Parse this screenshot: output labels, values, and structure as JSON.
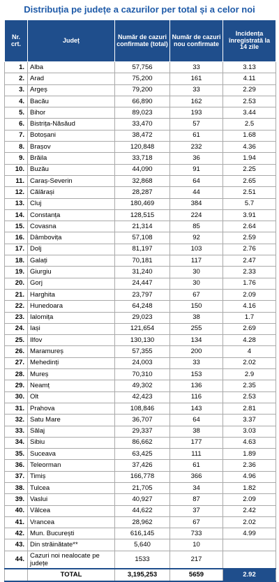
{
  "title": "Distribuția pe județe a cazurilor per total și a celor noi",
  "headers": {
    "nr": "Nr. crt.",
    "judet": "Județ",
    "total": "Număr de cazuri confirmate (total)",
    "noi": "Număr de cazuri nou confirmate",
    "incidenta": "Incidența înregistrată la 14 zile"
  },
  "rows": [
    {
      "nr": "1.",
      "judet": "Alba",
      "total": "57,756",
      "noi": "33",
      "inc": "3.13"
    },
    {
      "nr": "2.",
      "judet": "Arad",
      "total": "75,200",
      "noi": "161",
      "inc": "4.11"
    },
    {
      "nr": "3.",
      "judet": "Argeș",
      "total": "79,200",
      "noi": "33",
      "inc": "2.29"
    },
    {
      "nr": "4.",
      "judet": "Bacău",
      "total": "66,890",
      "noi": "162",
      "inc": "2.53"
    },
    {
      "nr": "5.",
      "judet": "Bihor",
      "total": "89,023",
      "noi": "193",
      "inc": "3.44"
    },
    {
      "nr": "6.",
      "judet": "Bistrița-Năsăud",
      "total": "33,470",
      "noi": "57",
      "inc": "2.5"
    },
    {
      "nr": "7.",
      "judet": "Botoșani",
      "total": "38,472",
      "noi": "61",
      "inc": "1.68"
    },
    {
      "nr": "8.",
      "judet": "Brașov",
      "total": "120,848",
      "noi": "232",
      "inc": "4.36"
    },
    {
      "nr": "9.",
      "judet": "Brăila",
      "total": "33,718",
      "noi": "36",
      "inc": "1.94"
    },
    {
      "nr": "10.",
      "judet": "Buzău",
      "total": "44,090",
      "noi": "91",
      "inc": "2.25"
    },
    {
      "nr": "11.",
      "judet": "Caraș-Severin",
      "total": "32,868",
      "noi": "64",
      "inc": "2.65"
    },
    {
      "nr": "12.",
      "judet": "Călărași",
      "total": "28,287",
      "noi": "44",
      "inc": "2.51"
    },
    {
      "nr": "13.",
      "judet": "Cluj",
      "total": "180,469",
      "noi": "384",
      "inc": "5.7"
    },
    {
      "nr": "14.",
      "judet": "Constanța",
      "total": "128,515",
      "noi": "224",
      "inc": "3.91"
    },
    {
      "nr": "15.",
      "judet": "Covasna",
      "total": "21,314",
      "noi": "85",
      "inc": "2.64"
    },
    {
      "nr": "16.",
      "judet": "Dâmbovița",
      "total": "57,108",
      "noi": "92",
      "inc": "2.59"
    },
    {
      "nr": "17.",
      "judet": "Dolj",
      "total": "81,197",
      "noi": "103",
      "inc": "2.76"
    },
    {
      "nr": "18.",
      "judet": "Galați",
      "total": "70,181",
      "noi": "117",
      "inc": "2.47"
    },
    {
      "nr": "19.",
      "judet": "Giurgiu",
      "total": "31,240",
      "noi": "30",
      "inc": "2.33"
    },
    {
      "nr": "20.",
      "judet": "Gorj",
      "total": "24,447",
      "noi": "30",
      "inc": "1.76"
    },
    {
      "nr": "21.",
      "judet": "Harghita",
      "total": "23,797",
      "noi": "67",
      "inc": "2.09"
    },
    {
      "nr": "22.",
      "judet": "Hunedoara",
      "total": "64,248",
      "noi": "150",
      "inc": "4.16"
    },
    {
      "nr": "23.",
      "judet": "Ialomița",
      "total": "29,023",
      "noi": "38",
      "inc": "1.7"
    },
    {
      "nr": "24.",
      "judet": "Iași",
      "total": "121,654",
      "noi": "255",
      "inc": "2.69"
    },
    {
      "nr": "25.",
      "judet": "Ilfov",
      "total": "130,130",
      "noi": "134",
      "inc": "4.28"
    },
    {
      "nr": "26.",
      "judet": "Maramureș",
      "total": "57,355",
      "noi": "200",
      "inc": "4"
    },
    {
      "nr": "27.",
      "judet": "Mehedinți",
      "total": "24,003",
      "noi": "33",
      "inc": "2.02"
    },
    {
      "nr": "28.",
      "judet": "Mureș",
      "total": "70,310",
      "noi": "153",
      "inc": "2.9"
    },
    {
      "nr": "29.",
      "judet": "Neamț",
      "total": "49,302",
      "noi": "136",
      "inc": "2.35"
    },
    {
      "nr": "30.",
      "judet": "Olt",
      "total": "42,423",
      "noi": "116",
      "inc": "2.53"
    },
    {
      "nr": "31.",
      "judet": "Prahova",
      "total": "108,846",
      "noi": "143",
      "inc": "2.81"
    },
    {
      "nr": "32.",
      "judet": "Satu Mare",
      "total": "36,707",
      "noi": "64",
      "inc": "3.37"
    },
    {
      "nr": "33.",
      "judet": "Sălaj",
      "total": "29,337",
      "noi": "38",
      "inc": "3.03"
    },
    {
      "nr": "34.",
      "judet": "Sibiu",
      "total": "86,662",
      "noi": "177",
      "inc": "4.63"
    },
    {
      "nr": "35.",
      "judet": "Suceava",
      "total": "63,425",
      "noi": "111",
      "inc": "1.89"
    },
    {
      "nr": "36.",
      "judet": "Teleorman",
      "total": "37,426",
      "noi": "61",
      "inc": "2.36"
    },
    {
      "nr": "37.",
      "judet": "Timiș",
      "total": "166,778",
      "noi": "366",
      "inc": "4.96"
    },
    {
      "nr": "38.",
      "judet": "Tulcea",
      "total": "21,705",
      "noi": "34",
      "inc": "1.82"
    },
    {
      "nr": "39.",
      "judet": "Vaslui",
      "total": "40,927",
      "noi": "87",
      "inc": "2.09"
    },
    {
      "nr": "40.",
      "judet": "Vâlcea",
      "total": "44,622",
      "noi": "37",
      "inc": "2.42"
    },
    {
      "nr": "41.",
      "judet": "Vrancea",
      "total": "28,962",
      "noi": "67",
      "inc": "2.02"
    },
    {
      "nr": "42.",
      "judet": "Mun. București",
      "total": "616,145",
      "noi": "733",
      "inc": "4.99"
    },
    {
      "nr": "43.",
      "judet": "Din străinătate**",
      "total": "5,640",
      "noi": "10",
      "inc": ""
    },
    {
      "nr": "44.",
      "judet": "Cazuri noi nealocate pe județe",
      "total": "1533",
      "noi": "217",
      "inc": ""
    }
  ],
  "total": {
    "label": "TOTAL",
    "total": "3,195,253",
    "noi": "5659",
    "inc": "2.92"
  },
  "colors": {
    "header_bg": "#1f4e8c",
    "title": "#1e5aa8"
  }
}
